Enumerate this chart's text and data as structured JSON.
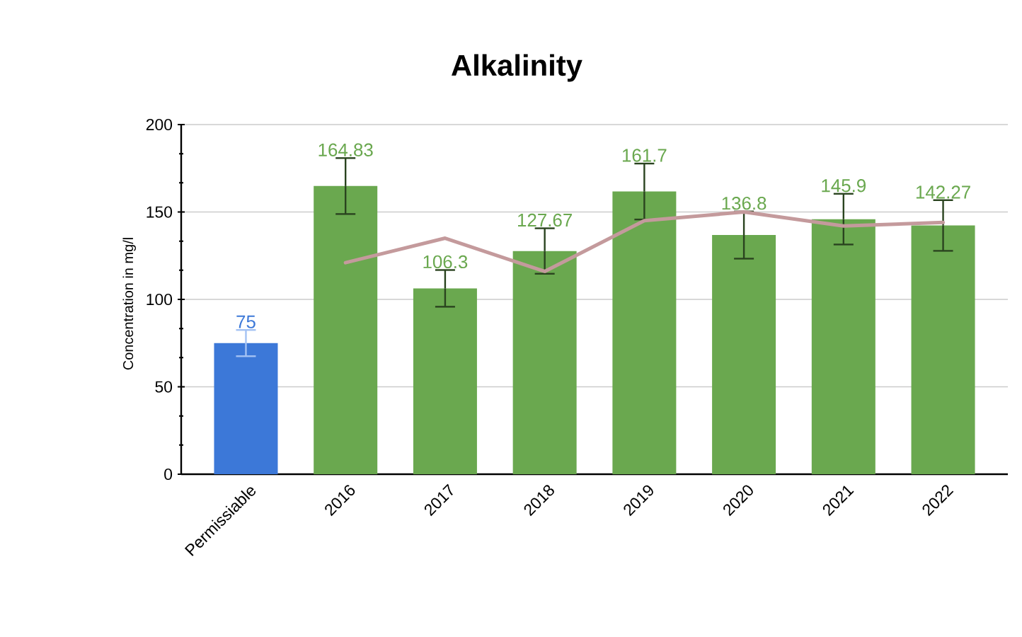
{
  "chart_data": {
    "type": "bar",
    "title": "Alkalinity",
    "ylabel": "Concentration in mg/l",
    "categories": [
      "Permissiable",
      "2016",
      "2017",
      "2018",
      "2019",
      "2020",
      "2021",
      "2022"
    ],
    "series": [
      {
        "colors": [
          "#3c78d8",
          "#6aa84f",
          "#6aa84f",
          "#6aa84f",
          "#6aa84f",
          "#6aa84f",
          "#6aa84f",
          "#6aa84f"
        ],
        "values": [
          75,
          164.83,
          106.3,
          127.67,
          161.7,
          136.8,
          145.9,
          142.27
        ],
        "errors": [
          7.5,
          16,
          10.5,
          13,
          16,
          13.5,
          14.5,
          14.5
        ],
        "value_labels": [
          "75",
          "164.83",
          "106.3",
          "127.67",
          "161.7",
          "136.8",
          "145.9",
          "142.27"
        ]
      },
      {
        "type": "line",
        "color": "#c49a9c",
        "values": [
          null,
          121,
          135,
          116,
          145,
          150,
          142,
          144
        ]
      }
    ],
    "ylim": [
      0,
      200
    ],
    "yticks": [
      0,
      50,
      100,
      150,
      200
    ],
    "grid": "y"
  }
}
